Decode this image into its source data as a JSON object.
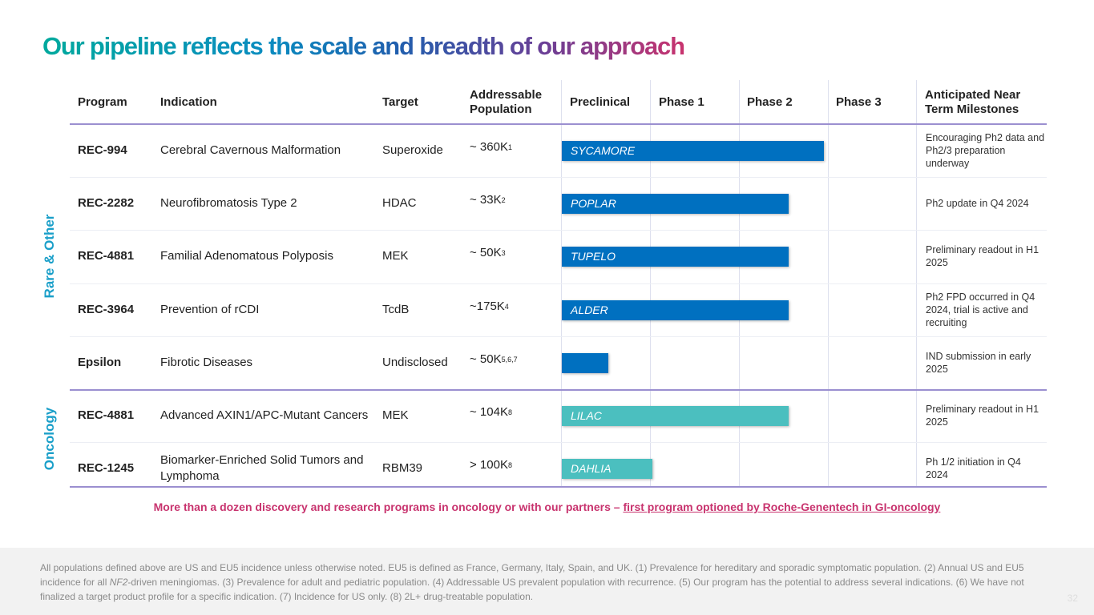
{
  "title": "Our pipeline reflects the scale and breadth of our approach",
  "headers": {
    "program": "Program",
    "indication": "Indication",
    "target": "Target",
    "population": "Addressable Population",
    "preclinical": "Preclinical",
    "phase1": "Phase 1",
    "phase2": "Phase 2",
    "phase3": "Phase 3",
    "milestones": "Anticipated Near Term Milestones"
  },
  "groups": {
    "rare": "Rare & Other",
    "oncology": "Oncology"
  },
  "colors": {
    "rare_bar": "#0070c0",
    "oncology_bar": "#4bbfbf",
    "accent": "#c8336e"
  },
  "rows": [
    {
      "program": "REC-994",
      "indication": "Cerebral Cavernous Malformation",
      "target": "Superoxide",
      "population": "~ 360K",
      "sup": "1",
      "bar_label": "SYCAMORE",
      "progress_phases": 2.95,
      "milestone": "Encouraging Ph2 data and Ph2/3 preparation underway",
      "group": "rare"
    },
    {
      "program": "REC-2282",
      "indication": "Neurofibromatosis Type 2",
      "target": "HDAC",
      "population": "~ 33K",
      "sup": "2",
      "bar_label": "POPLAR",
      "progress_phases": 2.55,
      "milestone": "Ph2 update in Q4 2024",
      "group": "rare"
    },
    {
      "program": "REC-4881",
      "indication": "Familial Adenomatous Polyposis",
      "target": "MEK",
      "population": "~ 50K",
      "sup": "3",
      "bar_label": "TUPELO",
      "progress_phases": 2.55,
      "milestone": "Preliminary readout in H1 2025",
      "group": "rare"
    },
    {
      "program": "REC-3964",
      "indication": "Prevention of rCDI",
      "target": "TcdB",
      "population": "~175K",
      "sup": "4",
      "bar_label": "ALDER",
      "progress_phases": 2.55,
      "milestone": "Ph2 FPD occurred in Q4 2024, trial is active and recruiting",
      "group": "rare"
    },
    {
      "program": "Epsilon",
      "indication": "Fibrotic Diseases",
      "target": "Undisclosed",
      "population": "~ 50K",
      "sup": "5,6,7",
      "bar_label": "",
      "progress_phases": 0.52,
      "milestone": "IND submission in early 2025",
      "group": "rare"
    },
    {
      "program": "REC-4881",
      "indication": "Advanced AXIN1/APC-Mutant Cancers",
      "target": "MEK",
      "population": "~ 104K",
      "sup": "8",
      "bar_label": "LILAC",
      "progress_phases": 2.55,
      "milestone": "Preliminary readout in H1 2025",
      "group": "oncology"
    },
    {
      "program": "REC-1245",
      "indication": "Biomarker-Enriched Solid Tumors and Lymphoma",
      "target": "RBM39",
      "population": "> 100K",
      "sup": "8",
      "bar_label": "DAHLIA",
      "progress_phases": 1.02,
      "milestone": "Ph 1/2 initiation in Q4 2024",
      "group": "oncology"
    }
  ],
  "note": {
    "text": "More than a dozen discovery and research programs in oncology or with our partners – ",
    "link": "first program optioned by Roche-Genentech in GI-oncology"
  },
  "footnote": {
    "part1": "All populations defined above are US and EU5 incidence unless otherwise noted. EU5 is defined as France, Germany, Italy, Spain, and UK. (1) Prevalence for hereditary and sporadic symptomatic population. (2) Annual US and EU5 incidence for all ",
    "italic": "NF2",
    "part2": "-driven meningiomas. (3) Prevalence for adult and pediatric population. (4) Addressable US prevalent population with recurrence. (5) Our program has the potential to address several indications. (6) We have not finalized a target product profile for a specific indication. (7) Incidence for US only. (8) 2L+ drug-treatable population."
  },
  "page_number": "32"
}
